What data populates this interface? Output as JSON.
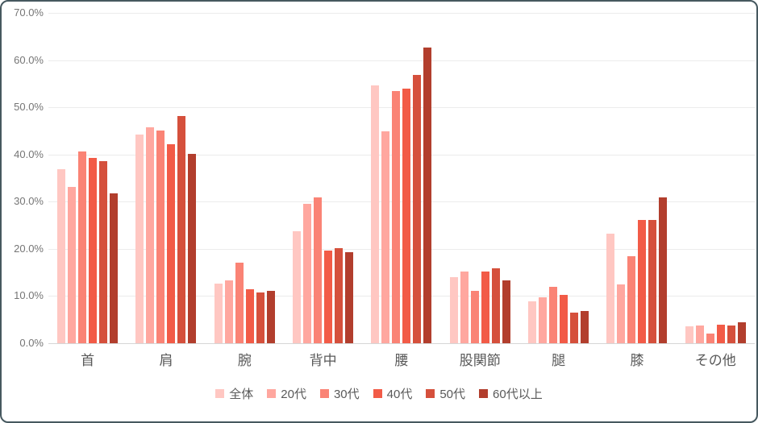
{
  "chart_data": {
    "type": "bar",
    "title": "",
    "xlabel": "",
    "ylabel": "",
    "grid": true,
    "legend_position": "bottom",
    "categories": [
      "首",
      "肩",
      "腕",
      "背中",
      "腰",
      "股関節",
      "腿",
      "膝",
      "その他"
    ],
    "series": [
      {
        "name": "全体",
        "color": "#FFC7C2",
        "values": [
          36.8,
          44.2,
          12.7,
          23.7,
          54.6,
          14.0,
          8.9,
          23.2,
          3.6
        ]
      },
      {
        "name": "20代",
        "color": "#FFA79F",
        "values": [
          33.1,
          45.7,
          13.4,
          29.5,
          44.9,
          15.2,
          9.7,
          12.4,
          3.8
        ]
      },
      {
        "name": "30代",
        "color": "#FA8375",
        "values": [
          40.7,
          45.0,
          17.1,
          30.9,
          53.5,
          11.1,
          11.9,
          18.5,
          2.1
        ]
      },
      {
        "name": "40代",
        "color": "#F25B47",
        "values": [
          39.3,
          42.1,
          11.5,
          19.6,
          53.9,
          15.2,
          10.2,
          26.1,
          4.0
        ]
      },
      {
        "name": "50代",
        "color": "#D5503C",
        "values": [
          38.6,
          48.2,
          10.7,
          20.1,
          56.9,
          15.8,
          6.5,
          26.1,
          3.8
        ]
      },
      {
        "name": "60代以上",
        "color": "#B23E2D",
        "values": [
          31.7,
          40.2,
          11.1,
          19.3,
          62.7,
          13.4,
          6.8,
          30.9,
          4.4
        ]
      }
    ],
    "y_axis": {
      "min": 0,
      "max": 70,
      "step": 10,
      "tick_labels": [
        "0.0%",
        "10.0%",
        "20.0%",
        "30.0%",
        "40.0%",
        "50.0%",
        "60.0%",
        "70.0%"
      ]
    }
  }
}
